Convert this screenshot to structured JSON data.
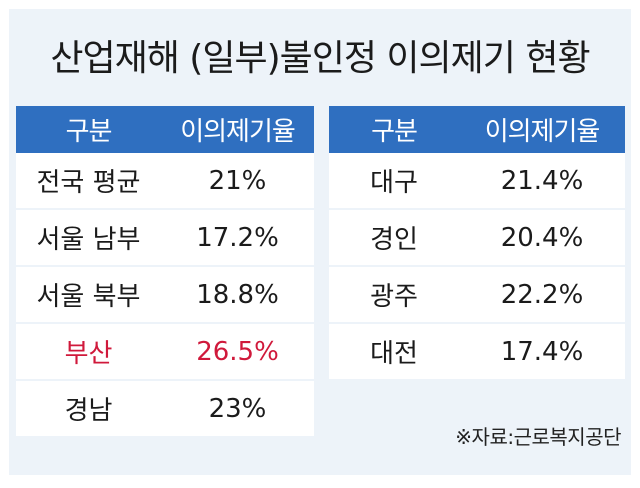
{
  "title": "산업재해 (일부)불인정 이의제기 현황",
  "left_table": {
    "headers": [
      "구분",
      "이의제기율"
    ],
    "rows": [
      {
        "region": "전국 평균",
        "rate": "21%",
        "highlight": false
      },
      {
        "region": "서울 남부",
        "rate": "17.2%",
        "highlight": false
      },
      {
        "region": "서울 북부",
        "rate": "18.8%",
        "highlight": false
      },
      {
        "region": "부산",
        "rate": "26.5%",
        "highlight": true
      },
      {
        "region": "경남",
        "rate": "23%",
        "highlight": false
      }
    ]
  },
  "right_table": {
    "headers": [
      "구분",
      "이의제기율"
    ],
    "rows": [
      {
        "region": "대구",
        "rate": "21.4%",
        "highlight": false
      },
      {
        "region": "경인",
        "rate": "20.4%",
        "highlight": false
      },
      {
        "region": "광주",
        "rate": "22.2%",
        "highlight": false
      },
      {
        "region": "대전",
        "rate": "17.4%",
        "highlight": false
      }
    ]
  },
  "source": "※자료:근로복지공단",
  "colors": {
    "header_bg": "#2f6fc0",
    "card_bg": "#edf3f9",
    "highlight_text": "#d0193b"
  }
}
